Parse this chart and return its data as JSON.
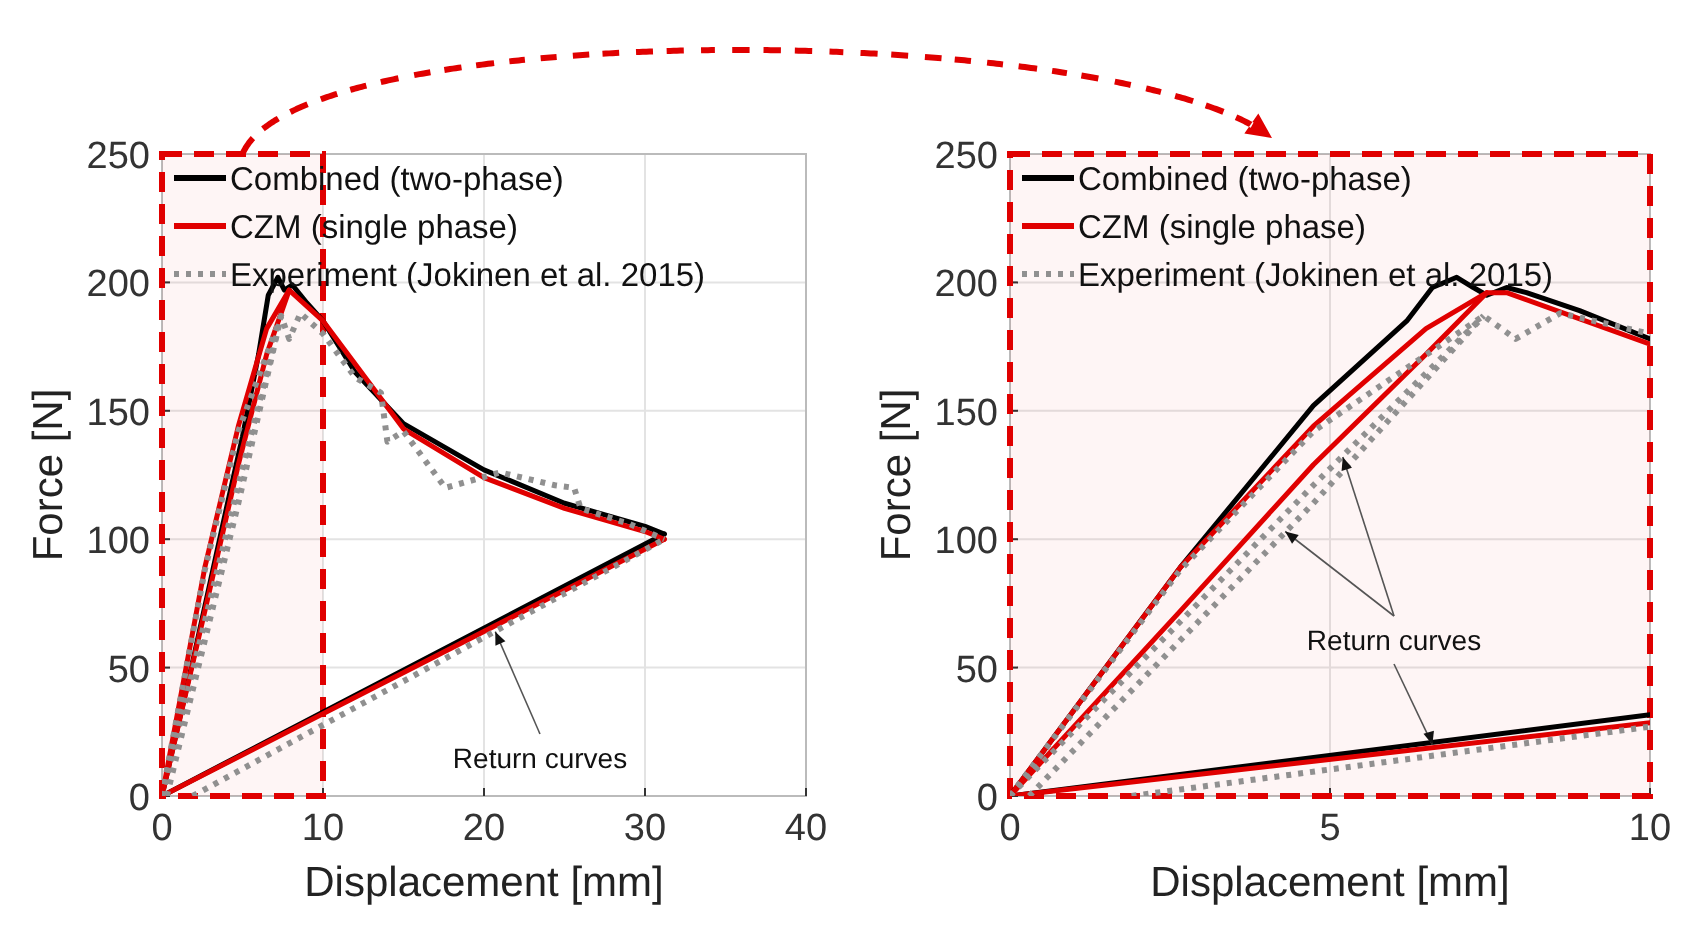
{
  "chart_data": [
    {
      "type": "line",
      "xlabel": "Displacement [mm]",
      "ylabel": "Force [N]",
      "xlim": [
        0,
        40
      ],
      "xticks": [
        0,
        10,
        20,
        30,
        40
      ],
      "ylim": [
        0,
        250
      ],
      "yticks": [
        0,
        50,
        100,
        150,
        200,
        250
      ],
      "grid": true,
      "legend": "top left",
      "annotations": [
        {
          "text": "Return curves",
          "x": 20.7,
          "y": 64
        }
      ],
      "bands": [
        {
          "axis": "x",
          "from": 0,
          "to": 10,
          "color": "#e00000"
        }
      ],
      "series": [
        {
          "name": "Combined (two-phase)",
          "color": "#000000",
          "line_style": "solid",
          "x": [
            0,
            2,
            4,
            5,
            6,
            6.6,
            7.2,
            7.6,
            8.1,
            9,
            10,
            12,
            15,
            20,
            25,
            30,
            31.2
          ],
          "values": [
            0,
            55,
            112,
            140,
            172,
            195,
            202,
            197,
            199,
            192,
            185,
            165,
            145,
            127,
            114,
            105,
            102
          ]
        },
        {
          "color": "#000000",
          "line_style": "solid",
          "x": [
            0,
            31.2
          ],
          "values": [
            0,
            102
          ]
        },
        {
          "name": "CZM (single phase)",
          "color": "#e00000",
          "line_style": "solid",
          "x": [
            0,
            2.66,
            4.74,
            6.5,
            7.9,
            10,
            15,
            20,
            25,
            30,
            31.2
          ],
          "values": [
            0,
            89,
            144,
            182,
            197,
            185,
            143,
            124,
            112,
            103,
            100
          ]
        },
        {
          "color": "#e00000",
          "line_style": "solid",
          "x": [
            0,
            31.2
          ],
          "values": [
            0,
            100
          ]
        },
        {
          "color": "#e00000",
          "line_style": "solid",
          "x": [
            0,
            2.66,
            4.74,
            6.5,
            7.9
          ],
          "values": [
            0,
            72,
            129,
            172,
            197
          ]
        },
        {
          "name": "Experiment (Jokinen et al. 2015)",
          "color": "#909090",
          "line_style": "dotted",
          "x": [
            0,
            2.66,
            4.74,
            7.4,
            7.9,
            8.6,
            10,
            12,
            13.6,
            14,
            15,
            17.6,
            21,
            24.4,
            25.6,
            26,
            29,
            31.2
          ],
          "values": [
            0,
            88,
            142,
            187,
            178,
            188,
            180,
            163,
            157,
            138,
            142,
            120,
            126,
            121,
            120,
            112,
            106,
            100
          ]
        },
        {
          "color": "#909090",
          "line_style": "dotted",
          "x": [
            1.9,
            31.2
          ],
          "values": [
            0,
            100
          ]
        },
        {
          "color": "#909090",
          "line_style": "dotted",
          "x": [
            0.3,
            4.74,
            7.4
          ],
          "values": [
            0,
            114,
            187
          ]
        },
        {
          "color": "#909090",
          "line_style": "dotted",
          "x": [
            0,
            4.74,
            7.4
          ],
          "values": [
            0,
            121,
            187
          ]
        }
      ]
    },
    {
      "type": "line",
      "xlabel": "Displacement [mm]",
      "ylabel": "Force [N]",
      "xlim": [
        0,
        10
      ],
      "xticks": [
        0,
        5,
        10
      ],
      "ylim": [
        0,
        250
      ],
      "yticks": [
        0,
        50,
        100,
        150,
        200,
        250
      ],
      "grid": true,
      "legend": "top left",
      "annotations": [
        {
          "text": "Return curves",
          "x": 5.2,
          "y": 132
        }
      ],
      "bands": [
        {
          "axis": "x",
          "from": 0,
          "to": 10,
          "color": "#e00000"
        }
      ],
      "series": [
        {
          "name": "Combined (two-phase)",
          "color": "#000000",
          "line_style": "solid",
          "x": [
            0,
            2.66,
            4.74,
            6.2,
            6.6,
            6.98,
            7.24,
            7.45,
            7.76,
            8.07,
            8.9,
            10
          ],
          "values": [
            0,
            89,
            152,
            185,
            198,
            202,
            198,
            195,
            198,
            196,
            189,
            178
          ]
        },
        {
          "color": "#000000",
          "line_style": "solid",
          "x": [
            0,
            10
          ],
          "values": [
            0,
            31.6
          ]
        },
        {
          "name": "CZM (single phase)",
          "color": "#e00000",
          "line_style": "solid",
          "x": [
            0,
            2.66,
            4.74,
            6.5,
            7.45,
            7.76,
            10
          ],
          "values": [
            0,
            89,
            144,
            182,
            196,
            196,
            176
          ]
        },
        {
          "color": "#e00000",
          "line_style": "solid",
          "x": [
            0,
            10
          ],
          "values": [
            0,
            28.5
          ]
        },
        {
          "color": "#e00000",
          "line_style": "solid",
          "x": [
            0,
            2.66,
            4.74,
            6.5,
            7.45
          ],
          "values": [
            0,
            72,
            129,
            172,
            196
          ]
        },
        {
          "name": "Experiment (Jokinen et al. 2015)",
          "color": "#909090",
          "line_style": "dotted",
          "x": [
            0,
            2.66,
            4.74,
            7.4,
            7.9,
            8.6,
            10
          ],
          "values": [
            0,
            88,
            142,
            187,
            178,
            188,
            180
          ]
        },
        {
          "color": "#909090",
          "line_style": "dotted",
          "x": [
            1.9,
            10
          ],
          "values": [
            0,
            27
          ]
        },
        {
          "color": "#909090",
          "line_style": "dotted",
          "x": [
            0.3,
            4.74,
            7.4
          ],
          "values": [
            0,
            114,
            187
          ]
        },
        {
          "color": "#909090",
          "line_style": "dotted",
          "x": [
            0,
            4.74,
            7.4
          ],
          "values": [
            0,
            121,
            187
          ]
        }
      ]
    }
  ]
}
